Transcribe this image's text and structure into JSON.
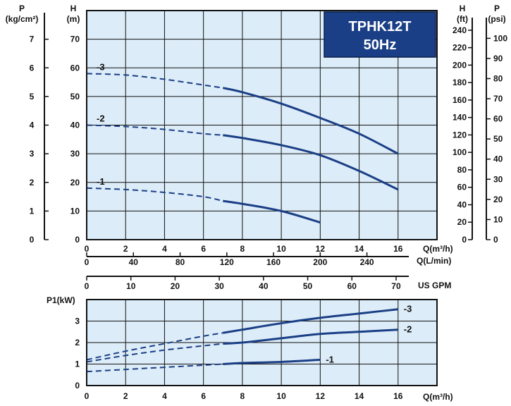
{
  "title_box": {
    "model": "TPHK12T",
    "frequency": "50Hz"
  },
  "colors": {
    "curve": "#1b3f86",
    "plot_bg": "#dcecf8",
    "title_bg": "#1b3f86",
    "axis": "#111111",
    "grid": "#111111"
  },
  "chart_data": [
    {
      "type": "line",
      "name": "head-curve",
      "xlabel": "Q(m³/h)",
      "ylabel": "H (m)",
      "xlim": [
        0,
        18
      ],
      "ylim": [
        0,
        80
      ],
      "grid": true,
      "x_ticks": [
        0,
        2,
        4,
        6,
        8,
        10,
        12,
        14,
        16
      ],
      "y_ticks": [
        0,
        10,
        20,
        30,
        40,
        50,
        60,
        70
      ],
      "secondary_axes": {
        "left_P": {
          "label": "P",
          "unit": "(kg/cm²)",
          "ticks": [
            0,
            1,
            2,
            3,
            4,
            5,
            6,
            7
          ]
        },
        "right_H_ft": {
          "label": "H",
          "unit": "(ft)",
          "ticks": [
            0,
            20,
            40,
            60,
            80,
            100,
            120,
            140,
            160,
            180,
            200,
            220,
            240
          ]
        },
        "right_P_psi": {
          "label": "P",
          "unit": "(psi)",
          "ticks": [
            0,
            10,
            20,
            30,
            40,
            50,
            60,
            70,
            80,
            90,
            100
          ]
        },
        "bottom_L_min": {
          "label": "Q(L/min)",
          "ticks": [
            0,
            40,
            80,
            120,
            160,
            200,
            240
          ]
        },
        "bottom_US_GPM": {
          "label": "US GPM",
          "ticks": [
            0,
            10,
            20,
            30,
            40,
            50,
            60,
            70
          ]
        }
      },
      "series": [
        {
          "name": "-3",
          "dashed_until": 7,
          "x": [
            0,
            2,
            4,
            6,
            7,
            8,
            10,
            12,
            14,
            16
          ],
          "y": [
            58,
            57.5,
            56,
            54,
            53,
            51.5,
            47.5,
            42.5,
            37,
            30
          ]
        },
        {
          "name": "-2",
          "dashed_until": 7,
          "x": [
            0,
            2,
            4,
            6,
            7,
            8,
            10,
            12,
            14,
            16
          ],
          "y": [
            40,
            39.5,
            38.5,
            37,
            36.5,
            35.5,
            33,
            29.5,
            24,
            17.5
          ]
        },
        {
          "name": "-1",
          "dashed_until": 7,
          "x": [
            0,
            2,
            4,
            6,
            7,
            8,
            10,
            12
          ],
          "y": [
            18,
            17.5,
            16.5,
            15,
            13.5,
            12.5,
            10,
            6
          ]
        }
      ]
    },
    {
      "type": "line",
      "name": "power-curve",
      "xlabel": "Q(m³/h)",
      "ylabel": "P1(kW)",
      "xlim": [
        0,
        18
      ],
      "ylim": [
        0,
        4
      ],
      "grid": true,
      "x_ticks": [
        0,
        2,
        4,
        6,
        8,
        10,
        12,
        14,
        16
      ],
      "y_ticks": [
        0,
        1,
        2,
        3
      ],
      "series": [
        {
          "name": "-3",
          "dashed_until": 7,
          "x": [
            0,
            2,
            4,
            6,
            7,
            8,
            10,
            12,
            14,
            16
          ],
          "y": [
            1.2,
            1.6,
            1.95,
            2.3,
            2.45,
            2.6,
            2.9,
            3.15,
            3.35,
            3.55
          ]
        },
        {
          "name": "-2",
          "dashed_until": 7,
          "x": [
            0,
            2,
            4,
            6,
            7,
            8,
            10,
            12,
            14,
            16
          ],
          "y": [
            1.1,
            1.4,
            1.65,
            1.85,
            1.95,
            2.0,
            2.2,
            2.4,
            2.5,
            2.6
          ]
        },
        {
          "name": "-1",
          "dashed_until": 7,
          "x": [
            0,
            2,
            4,
            6,
            7,
            8,
            10,
            12
          ],
          "y": [
            0.65,
            0.75,
            0.85,
            0.95,
            1.0,
            1.05,
            1.1,
            1.2
          ]
        }
      ]
    }
  ]
}
